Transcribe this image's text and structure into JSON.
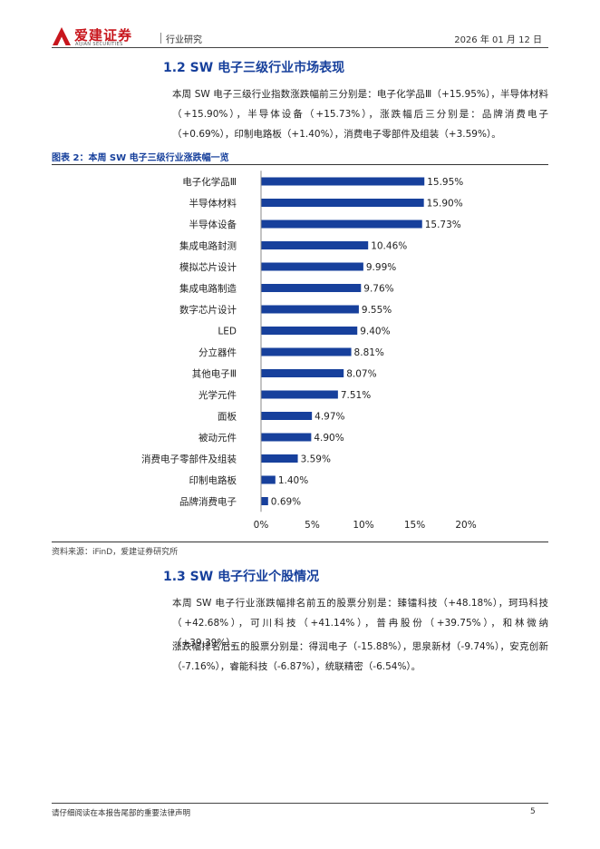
{
  "header": {
    "logo_text": "爱建证券",
    "logo_en": "AIJIAN SECURITIES",
    "category": "行业研究",
    "date": "2026 年 01 月 12 日"
  },
  "section_1_2": {
    "title": "1.2 SW 电子三级行业市场表现",
    "paragraph": "本周 SW 电子三级行业指数涨跌幅前三分别是：电子化学品Ⅲ（+15.95%），半导体材料（+15.90%），半导体设备（+15.73%），涨跌幅后三分别是：品牌消费电子（+0.69%），印制电路板（+1.40%），消费电子零部件及组装（+3.59%）。"
  },
  "figure": {
    "title": "图表 2：本周 SW 电子三级行业涨跌幅一览",
    "source": "资料来源：iFinD，爱建证券研究所"
  },
  "chart_data": {
    "type": "bar",
    "orientation": "horizontal",
    "categories": [
      "电子化学品Ⅲ",
      "半导体材料",
      "半导体设备",
      "集成电路封测",
      "模拟芯片设计",
      "集成电路制造",
      "数字芯片设计",
      "LED",
      "分立器件",
      "其他电子Ⅲ",
      "光学元件",
      "面板",
      "被动元件",
      "消费电子零部件及组装",
      "印制电路板",
      "品牌消费电子"
    ],
    "values": [
      15.95,
      15.9,
      15.73,
      10.46,
      9.99,
      9.76,
      9.55,
      9.4,
      8.81,
      8.07,
      7.51,
      4.97,
      4.9,
      3.59,
      1.4,
      0.69
    ],
    "data_labels": [
      "15.95%",
      "15.90%",
      "15.73%",
      "10.46%",
      "9.99%",
      "9.76%",
      "9.55%",
      "9.40%",
      "8.81%",
      "8.07%",
      "7.51%",
      "4.97%",
      "4.90%",
      "3.59%",
      "1.40%",
      "0.69%"
    ],
    "xlim": [
      0,
      20
    ],
    "xticks": [
      0,
      5,
      10,
      15,
      20
    ],
    "xtick_labels": [
      "0%",
      "5%",
      "10%",
      "15%",
      "20%"
    ],
    "grid": false,
    "bar_color": "#17409c",
    "title": "",
    "xlabel": "",
    "ylabel": ""
  },
  "section_1_3": {
    "title": "1.3 SW 电子行业个股情况",
    "paragraph_1": "本周 SW 电子行业涨跌幅排名前五的股票分别是：臻镭科技（+48.18%），珂玛科技（+42.68%），可川科技（+41.14%），普冉股份（+39.75%），和林微纳（+39.39%）。",
    "paragraph_2": "涨跌幅排名后五的股票分别是：得润电子（-15.88%），思泉新材（-9.74%），安克创新（-7.16%），睿能科技（-6.87%），统联精密（-6.54%）。"
  },
  "footer": {
    "note": "请仔细阅读在本报告尾部的重要法律声明",
    "page": "5"
  },
  "colors": {
    "accent": "#17409c",
    "brand_red": "#c8161d"
  }
}
